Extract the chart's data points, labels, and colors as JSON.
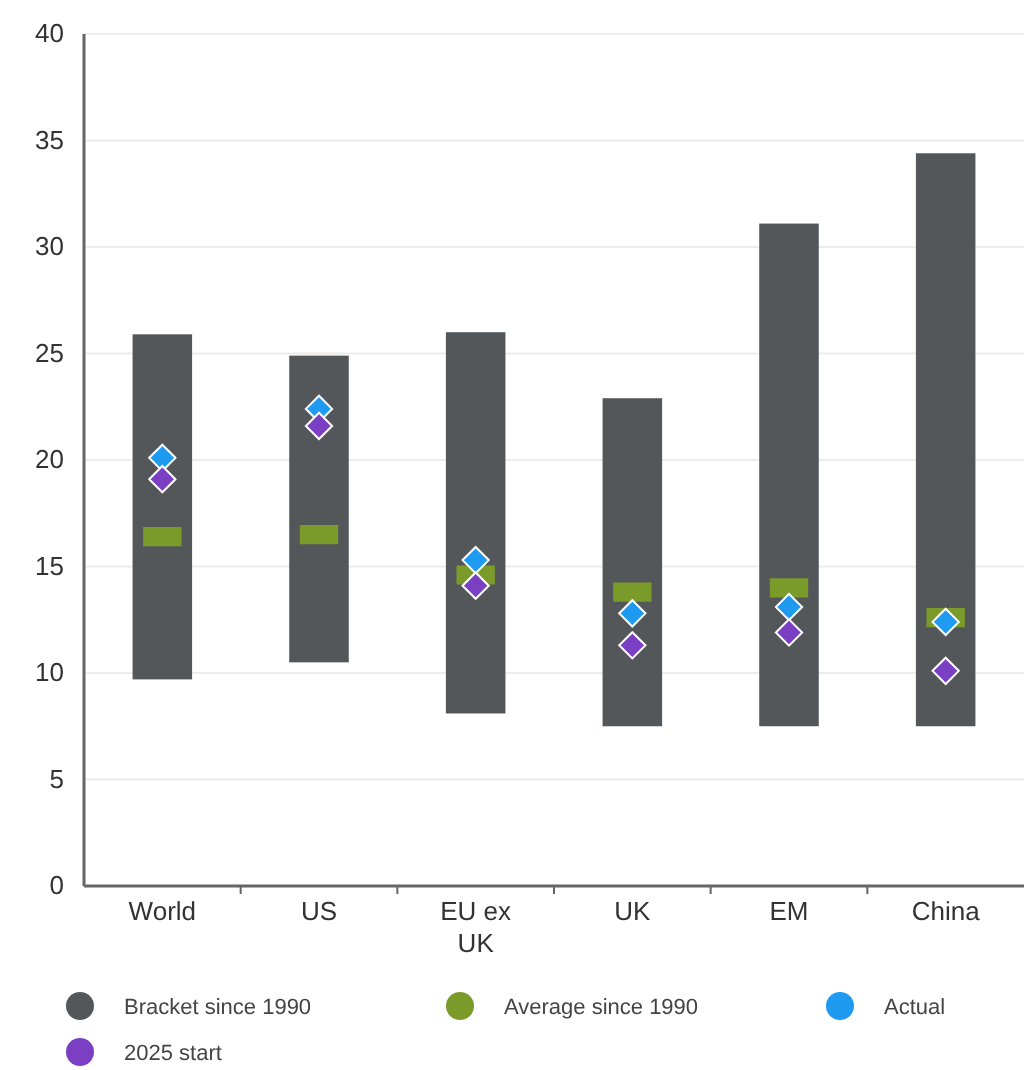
{
  "chart_data": {
    "type": "bar",
    "categories": [
      "World",
      "US",
      "EU ex UK",
      "UK",
      "EM",
      "China"
    ],
    "ylim": [
      0,
      40
    ],
    "yticks": [
      0,
      5,
      10,
      15,
      20,
      25,
      30,
      35,
      40
    ],
    "grid": "y",
    "legend": "bottom",
    "series": [
      {
        "name": "Bracket since 1990",
        "color": "#54575a",
        "base": [
          9.7,
          10.5,
          8.1,
          7.5,
          7.5,
          7.5
        ],
        "values": [
          16.2,
          14.4,
          17.9,
          15.4,
          23.6,
          26.9
        ]
      },
      {
        "name": "Average since 1990",
        "type": "scatter",
        "marker": "square",
        "color": "#7a9a2a",
        "values": [
          16.4,
          16.5,
          14.6,
          13.8,
          14.0,
          12.6
        ]
      },
      {
        "name": "Actual",
        "type": "scatter",
        "marker": "diamond",
        "color": "#1e9bf0",
        "values": [
          20.1,
          22.4,
          15.3,
          12.8,
          13.1,
          12.4
        ]
      },
      {
        "name": "2025 start",
        "type": "scatter",
        "marker": "diamond",
        "color": "#7b3fc4",
        "values": [
          19.1,
          21.6,
          14.1,
          11.3,
          11.9,
          10.1
        ]
      }
    ]
  }
}
